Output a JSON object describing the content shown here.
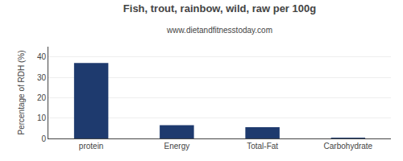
{
  "chart_data": {
    "type": "bar",
    "title": "Fish, trout, rainbow, wild, raw per 100g",
    "subtitle": "www.dietandfitnesstoday.com",
    "categories": [
      "protein",
      "Energy",
      "Total-Fat",
      "Carbohydrate"
    ],
    "values": [
      37,
      6.5,
      5.5,
      0.1
    ],
    "color": "#1e3a6e",
    "ylabel": "Percentage of RDH (%)",
    "ylim": [
      0,
      45
    ],
    "yticks": [
      0,
      10,
      20,
      30,
      40
    ],
    "grid": true
  }
}
